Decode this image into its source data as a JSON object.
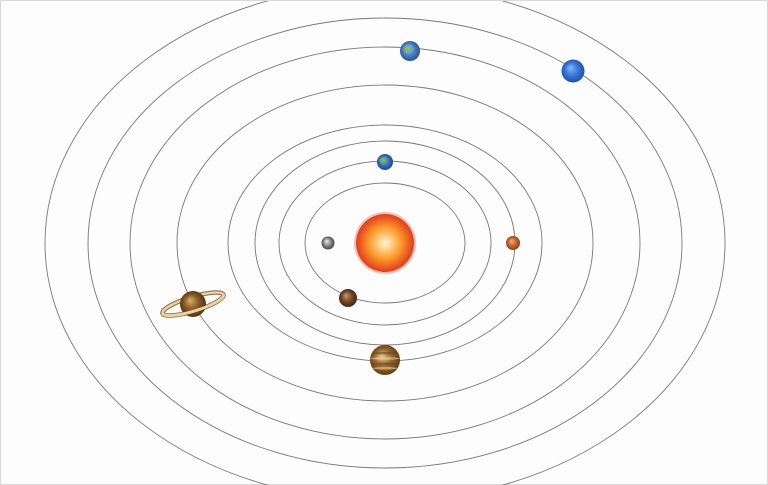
{
  "scene": {
    "background": "#fdfdfd",
    "orbit_color": "#777777",
    "orbit_count": 8
  },
  "sun": {
    "name": "sun",
    "colors": {
      "core": "#fff6d0",
      "mid": "#ff9a2a",
      "edge": "#d8261c"
    }
  },
  "planets": [
    {
      "name": "mercury",
      "colors": [
        "#f2f2f2",
        "#8c8c8c",
        "#3a3a3a"
      ],
      "ring": false
    },
    {
      "name": "venus",
      "colors": [
        "#c89a6a",
        "#7a4a28",
        "#3a2010"
      ],
      "ring": false
    },
    {
      "name": "earth",
      "colors": [
        "#9bd37a",
        "#3a78c8",
        "#1a3e80"
      ],
      "ring": false
    },
    {
      "name": "mars",
      "colors": [
        "#f0b070",
        "#c76a30",
        "#7a3a18"
      ],
      "ring": false
    },
    {
      "name": "jupiter",
      "colors": [
        "#e8c890",
        "#9a6a30",
        "#5a3810"
      ],
      "ring": false
    },
    {
      "name": "saturn",
      "colors": [
        "#d8b070",
        "#8a5a28",
        "#4a3010"
      ],
      "ring": true,
      "ring_colors": [
        "#e6d2a6",
        "#8a6a40"
      ]
    },
    {
      "name": "uranus",
      "colors": [
        "#c8e0f0",
        "#4a86c8",
        "#2a4a80"
      ],
      "ring": false
    },
    {
      "name": "neptune",
      "colors": [
        "#8ab8f0",
        "#3a78d8",
        "#1a4aa8"
      ],
      "ring": false
    }
  ]
}
